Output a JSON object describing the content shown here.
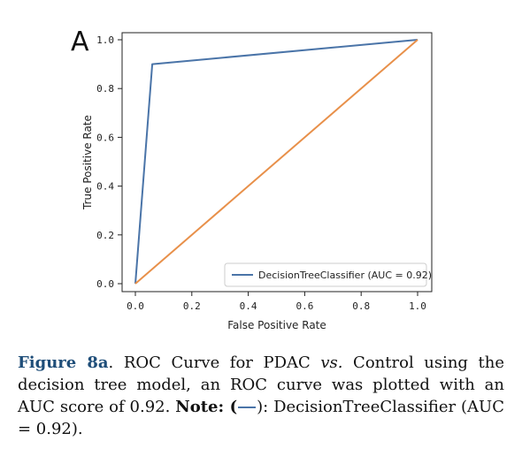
{
  "figure": {
    "panel_letter": "A"
  },
  "chart_data": {
    "type": "line",
    "xlabel": "False Positive Rate",
    "ylabel": "True Positive Rate",
    "xlim": [
      0.0,
      1.0
    ],
    "ylim": [
      0.0,
      1.0
    ],
    "xticks": [
      "0.0",
      "0.2",
      "0.4",
      "0.6",
      "0.8",
      "1.0"
    ],
    "yticks": [
      "0.0",
      "0.2",
      "0.4",
      "0.6",
      "0.8",
      "1.0"
    ],
    "grid": false,
    "legend_position": "bottom-right",
    "series": [
      {
        "name": "DecisionTreeClassifier (AUC = 0.92)",
        "x": [
          0.0,
          0.06,
          1.0
        ],
        "y": [
          0.0,
          0.9,
          1.0
        ],
        "color": "#4a74a8"
      },
      {
        "x": [
          0.0,
          1.0
        ],
        "y": [
          0.0,
          1.0
        ],
        "color": "#e8904a"
      }
    ]
  },
  "caption": {
    "fig_label": "Figure 8a",
    "part1": ". ROC Curve for PDAC ",
    "vs": "vs.",
    "part2": " Control using the decision tree model, an ROC curve was plotted with an AUC score of 0.92. ",
    "note_label": "Note:",
    "note_open": " (",
    "note_close": "): DecisionTreeClassifier (AUC = 0.92)."
  }
}
